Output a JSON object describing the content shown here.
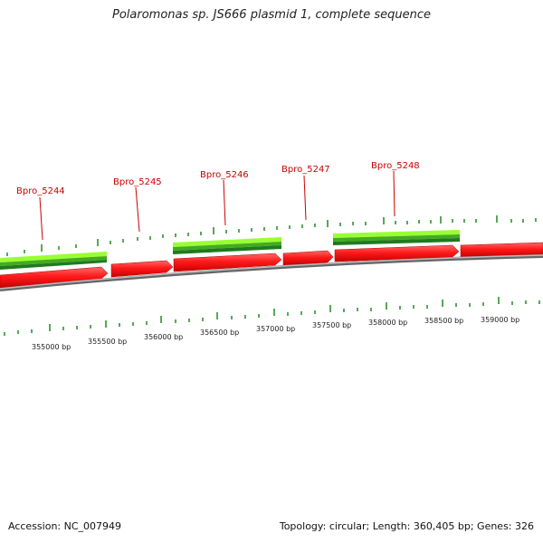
{
  "title": "Polaromonas sp. JS666 plasmid 1, complete sequence",
  "footer": {
    "accession": "Accession: NC_007949",
    "topology": "Topology: circular; Length: 360,405 bp; Genes: 326"
  },
  "colors": {
    "gene": "#ff1a1a",
    "gene_dark": "#c80000",
    "green_light": "#99ff33",
    "green_dark": "#2a8a2a",
    "tick": "#1f8a1f",
    "backbone": "#888888",
    "label": "#cc0000"
  },
  "gene_labels": [
    "Bpro_5244",
    "Bpro_5245",
    "Bpro_5246",
    "Bpro_5247",
    "Bpro_5248"
  ],
  "bp_labels": [
    "355000 bp",
    "355500 bp",
    "356000 bp",
    "356500 bp",
    "357000 bp",
    "357500 bp",
    "358000 bp",
    "358500 bp",
    "359000 bp"
  ]
}
